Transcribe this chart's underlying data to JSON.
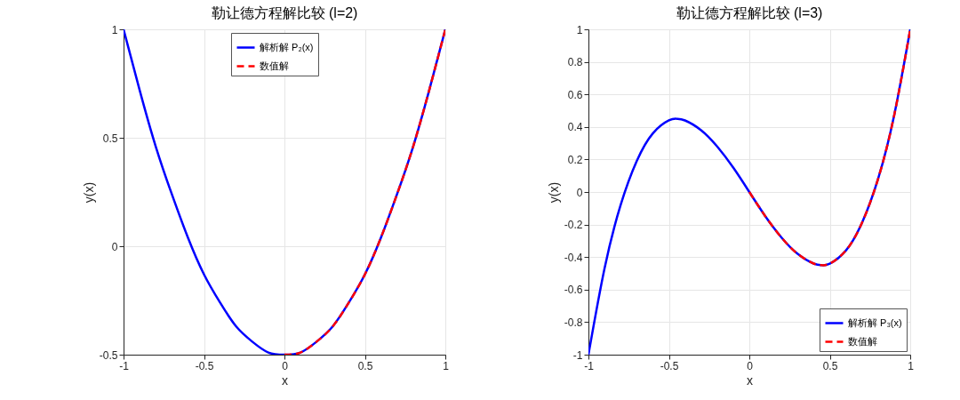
{
  "chart_data": [
    {
      "type": "line",
      "title": "勒让德方程解比较 (l=2)",
      "xlabel": "x",
      "ylabel": "y(x)",
      "xlim": [
        -1,
        1
      ],
      "ylim": [
        -0.5,
        1
      ],
      "xticks": [
        -1,
        -0.5,
        0,
        0.5,
        1
      ],
      "yticks": [
        -0.5,
        0,
        0.5,
        1
      ],
      "grid": true,
      "legend": "top",
      "series": [
        {
          "name": "解析解 P₂(x)",
          "color": "#0000ff",
          "line_style": "solid",
          "x": [
            -1,
            -0.9,
            -0.8,
            -0.7,
            -0.6,
            -0.5,
            -0.4,
            -0.3,
            -0.2,
            -0.1,
            0,
            0.1,
            0.2,
            0.3,
            0.4,
            0.5,
            0.6,
            0.7,
            0.8,
            0.9,
            1
          ],
          "values": [
            1,
            0.72,
            0.46,
            0.24,
            0.04,
            -0.13,
            -0.26,
            -0.37,
            -0.44,
            -0.49,
            -0.5,
            -0.49,
            -0.44,
            -0.37,
            -0.26,
            -0.13,
            0.04,
            0.24,
            0.46,
            0.72,
            1
          ]
        },
        {
          "name": "数值解",
          "color": "#ff0000",
          "line_style": "dashed",
          "x": [
            0,
            0.1,
            0.2,
            0.3,
            0.4,
            0.5,
            0.6,
            0.7,
            0.8,
            0.9,
            1
          ],
          "values": [
            -0.5,
            -0.49,
            -0.44,
            -0.37,
            -0.26,
            -0.13,
            0.04,
            0.24,
            0.46,
            0.72,
            1
          ]
        }
      ]
    },
    {
      "type": "line",
      "title": "勒让德方程解比较 (l=3)",
      "xlabel": "x",
      "ylabel": "y(x)",
      "xlim": [
        -1,
        1
      ],
      "ylim": [
        -1,
        1
      ],
      "xticks": [
        -1,
        -0.5,
        0,
        0.5,
        1
      ],
      "yticks": [
        -1,
        -0.8,
        -0.6,
        -0.4,
        -0.2,
        0,
        0.2,
        0.4,
        0.6,
        0.8,
        1
      ],
      "grid": true,
      "legend": "bottom right",
      "series": [
        {
          "name": "解析解 P₃(x)",
          "color": "#0000ff",
          "line_style": "solid",
          "x": [
            -1,
            -0.9,
            -0.8,
            -0.7,
            -0.6,
            -0.5,
            -0.45,
            -0.4,
            -0.3,
            -0.2,
            -0.1,
            0,
            0.1,
            0.2,
            0.3,
            0.4,
            0.45,
            0.5,
            0.6,
            0.7,
            0.8,
            0.9,
            1
          ],
          "values": [
            -1,
            -0.47,
            -0.08,
            0.19,
            0.36,
            0.44,
            0.45,
            0.44,
            0.38,
            0.28,
            0.15,
            0,
            -0.15,
            -0.28,
            -0.38,
            -0.44,
            -0.45,
            -0.44,
            -0.36,
            -0.19,
            0.08,
            0.47,
            1
          ]
        },
        {
          "name": "数值解",
          "color": "#ff0000",
          "line_style": "dashed",
          "x": [
            0,
            0.1,
            0.2,
            0.3,
            0.4,
            0.45,
            0.5,
            0.6,
            0.7,
            0.8,
            0.9,
            1
          ],
          "values": [
            0,
            -0.15,
            -0.28,
            -0.38,
            -0.44,
            -0.45,
            -0.44,
            -0.36,
            -0.19,
            0.08,
            0.47,
            1
          ]
        }
      ]
    }
  ]
}
